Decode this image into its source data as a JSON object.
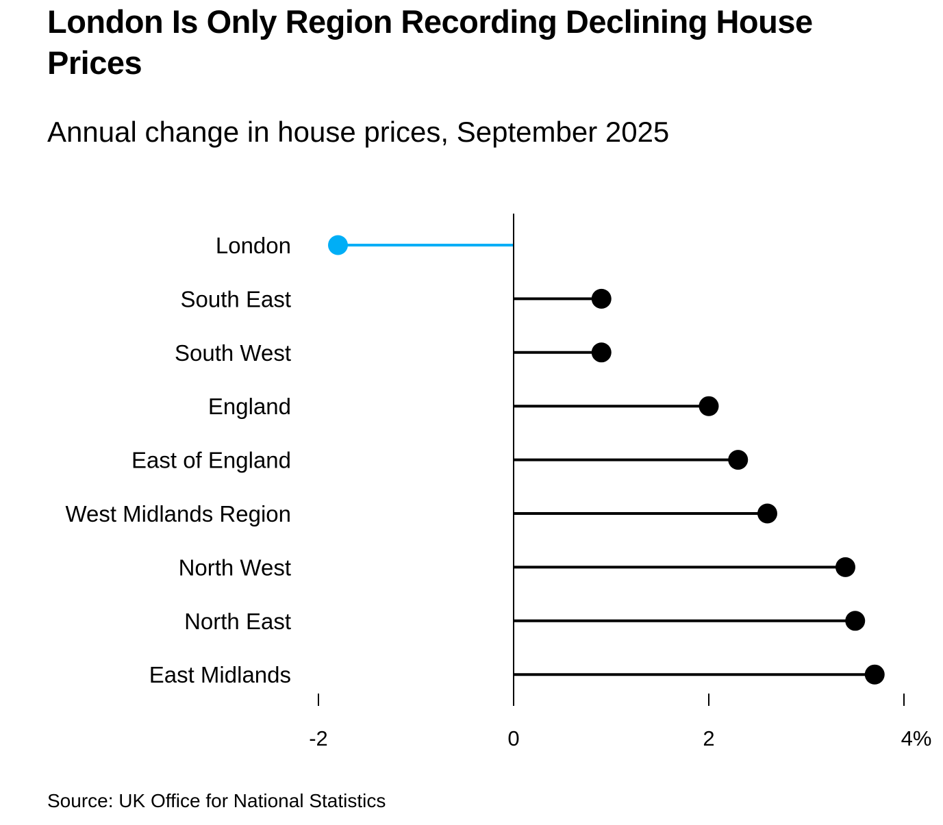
{
  "title": "London Is Only Region Recording Declining House Prices",
  "subtitle": "Annual change in house prices, September 2025",
  "source": "Source: UK Office for National Statistics",
  "colors": {
    "highlight": "#00AEF6",
    "default": "#000000"
  },
  "chart_data": {
    "type": "lollipop",
    "orientation": "horizontal",
    "title": "London Is Only Region Recording Declining House Prices",
    "subtitle": "Annual change in house prices, September 2025",
    "xlabel": "",
    "ylabel": "",
    "xlim": [
      -2,
      4
    ],
    "x_ticks": [
      -2,
      0,
      2,
      4
    ],
    "x_tick_labels": [
      "-2",
      "0",
      "2",
      "4%"
    ],
    "grid": false,
    "legend": "none",
    "categories": [
      "London",
      "South East",
      "South West",
      "England",
      "East of England",
      "West Midlands Region",
      "North West",
      "North East",
      "East Midlands"
    ],
    "values": [
      -1.8,
      0.9,
      0.9,
      2.0,
      2.3,
      2.6,
      3.4,
      3.5,
      3.7
    ],
    "highlight": [
      "London"
    ],
    "unit": "%",
    "source": "UK Office for National Statistics"
  }
}
